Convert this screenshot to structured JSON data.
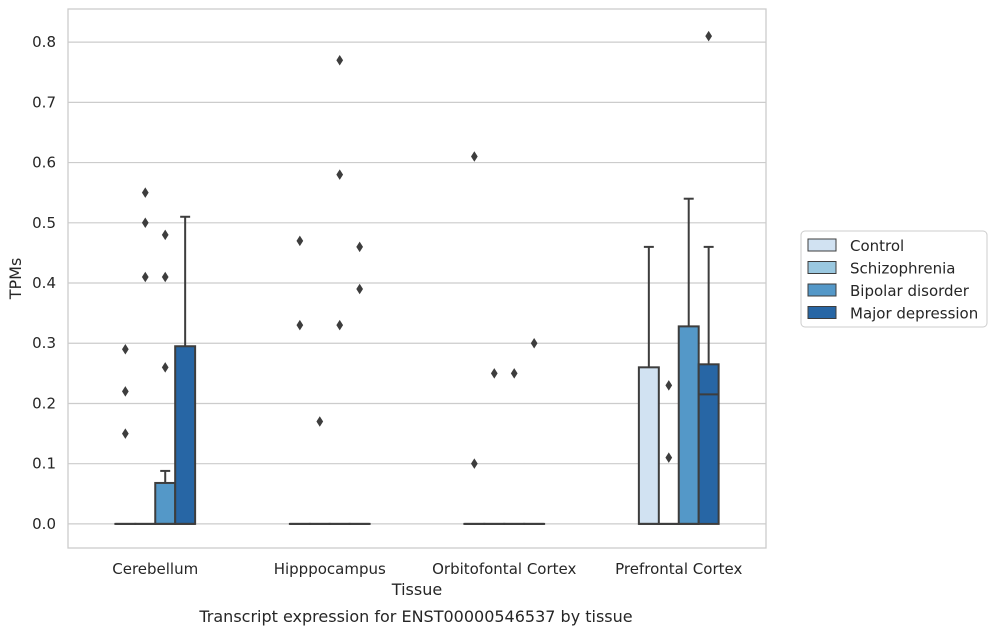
{
  "caption": "Transcript expression for ENST00000546537 by tissue",
  "chart_data": {
    "type": "box",
    "title": "",
    "xlabel": "Tissue",
    "ylabel": "TPMs",
    "ylim": [
      -0.04,
      0.855
    ],
    "yticks": [
      0.0,
      0.1,
      0.2,
      0.3,
      0.4,
      0.5,
      0.6,
      0.7,
      0.8
    ],
    "ytick_labels": [
      "0.0",
      "0.1",
      "0.2",
      "0.3",
      "0.4",
      "0.5",
      "0.6",
      "0.7",
      "0.8"
    ],
    "grid": "horizontal",
    "legend_position": "right",
    "categories": [
      "Cerebellum",
      "Hipppocampus",
      "Orbitofontal Cortex",
      "Prefrontal Cortex"
    ],
    "series": [
      {
        "name": "Control",
        "color": "#d1e2f2",
        "boxes": [
          {
            "whislo": 0,
            "q1": 0,
            "med": 0,
            "q3": 0,
            "whishi": 0,
            "fliers": [
              0.15,
              0.22,
              0.29
            ]
          },
          {
            "whislo": 0,
            "q1": 0,
            "med": 0,
            "q3": 0,
            "whishi": 0,
            "fliers": [
              0.33,
              0.47
            ]
          },
          {
            "whislo": 0,
            "q1": 0,
            "med": 0,
            "q3": 0,
            "whishi": 0,
            "fliers": [
              0.1,
              0.61
            ]
          },
          {
            "whislo": 0,
            "q1": 0,
            "med": 0,
            "q3": 0.26,
            "whishi": 0.46,
            "fliers": []
          }
        ]
      },
      {
        "name": "Schizophrenia",
        "color": "#9ac8e0",
        "boxes": [
          {
            "whislo": 0,
            "q1": 0,
            "med": 0,
            "q3": 0,
            "whishi": 0,
            "fliers": [
              0.41,
              0.5,
              0.55
            ]
          },
          {
            "whislo": 0,
            "q1": 0,
            "med": 0,
            "q3": 0,
            "whishi": 0,
            "fliers": [
              0.17
            ]
          },
          {
            "whislo": 0,
            "q1": 0,
            "med": 0,
            "q3": 0,
            "whishi": 0,
            "fliers": [
              0.25
            ]
          },
          {
            "whislo": 0,
            "q1": 0,
            "med": 0,
            "q3": 0,
            "whishi": 0,
            "fliers": [
              0.11,
              0.23
            ]
          }
        ]
      },
      {
        "name": "Bipolar disorder",
        "color": "#5498c8",
        "boxes": [
          {
            "whislo": 0,
            "q1": 0,
            "med": 0,
            "q3": 0.068,
            "whishi": 0.088,
            "fliers": [
              0.26,
              0.41,
              0.48
            ]
          },
          {
            "whislo": 0,
            "q1": 0,
            "med": 0,
            "q3": 0,
            "whishi": 0,
            "fliers": [
              0.33,
              0.58,
              0.77
            ]
          },
          {
            "whislo": 0,
            "q1": 0,
            "med": 0,
            "q3": 0,
            "whishi": 0,
            "fliers": [
              0.25
            ]
          },
          {
            "whislo": 0,
            "q1": 0,
            "med": 0,
            "q3": 0.328,
            "whishi": 0.54,
            "fliers": []
          }
        ]
      },
      {
        "name": "Major depression",
        "color": "#2766a5",
        "boxes": [
          {
            "whislo": 0,
            "q1": 0,
            "med": 0,
            "q3": 0.295,
            "whishi": 0.51,
            "fliers": []
          },
          {
            "whislo": 0,
            "q1": 0,
            "med": 0,
            "q3": 0,
            "whishi": 0,
            "fliers": [
              0.39,
              0.46
            ]
          },
          {
            "whislo": 0,
            "q1": 0,
            "med": 0,
            "q3": 0,
            "whishi": 0,
            "fliers": [
              0.3
            ]
          },
          {
            "whislo": 0,
            "q1": 0,
            "med": 0.215,
            "q3": 0.265,
            "whishi": 0.46,
            "fliers": [
              0.81
            ]
          }
        ]
      }
    ]
  }
}
